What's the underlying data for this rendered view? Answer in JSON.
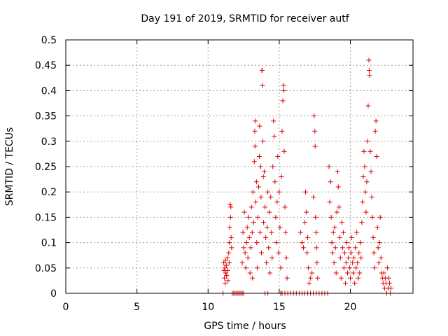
{
  "chart_data": {
    "type": "scatter",
    "title": "Day 191 of 2019, SRMTID for receiver autf",
    "xlabel": "GPS time / hours",
    "ylabel": "SRMTID / TECUs",
    "xlim": [
      0,
      24.4
    ],
    "ylim": [
      0,
      0.5
    ],
    "xticks": [
      0,
      5,
      10,
      15,
      20
    ],
    "xtick_labels": [
      "0",
      "5",
      "10",
      "15",
      "20"
    ],
    "yticks": [
      0,
      0.05,
      0.1,
      0.15,
      0.2,
      0.25,
      0.3,
      0.35,
      0.4,
      0.45,
      0.5
    ],
    "ytick_labels": [
      "0",
      "0.05",
      "0.1",
      "0.15",
      "0.2",
      "0.25",
      "0.3",
      "0.35",
      "0.4",
      "0.45",
      "0.5"
    ],
    "grid": true,
    "marker": "+",
    "color": "#dd0000",
    "series": [
      {
        "name": "SRMTID",
        "points": [
          [
            11.05,
            0.0
          ],
          [
            11.1,
            0.06
          ],
          [
            11.12,
            0.045
          ],
          [
            11.15,
            0.03
          ],
          [
            11.18,
            0.05
          ],
          [
            11.2,
            0.02
          ],
          [
            11.22,
            0.065
          ],
          [
            11.25,
            0.04
          ],
          [
            11.28,
            0.055
          ],
          [
            11.3,
            0.035
          ],
          [
            11.35,
            0.07
          ],
          [
            11.38,
            0.045
          ],
          [
            11.4,
            0.025
          ],
          [
            11.45,
            0.08
          ],
          [
            11.48,
            0.06
          ],
          [
            11.5,
            0.1
          ],
          [
            11.52,
            0.13
          ],
          [
            11.55,
            0.175
          ],
          [
            11.58,
            0.15
          ],
          [
            11.6,
            0.17
          ],
          [
            11.62,
            0.11
          ],
          [
            11.65,
            0.09
          ],
          [
            11.7,
            0.0
          ],
          [
            11.8,
            0.0
          ],
          [
            11.9,
            0.0
          ],
          [
            12.0,
            0.0
          ],
          [
            12.1,
            0.0
          ],
          [
            12.2,
            0.0
          ],
          [
            12.3,
            0.0
          ],
          [
            12.4,
            0.0
          ],
          [
            12.5,
            0.0
          ],
          [
            12.4,
            0.06
          ],
          [
            12.45,
            0.12
          ],
          [
            12.5,
            0.09
          ],
          [
            12.55,
            0.16
          ],
          [
            12.6,
            0.08
          ],
          [
            12.65,
            0.05
          ],
          [
            12.7,
            0.1
          ],
          [
            12.75,
            0.13
          ],
          [
            12.8,
            0.07
          ],
          [
            12.85,
            0.15
          ],
          [
            12.9,
            0.11
          ],
          [
            12.95,
            0.04
          ],
          [
            13.0,
            0.09
          ],
          [
            13.05,
            0.17
          ],
          [
            13.1,
            0.12
          ],
          [
            13.12,
            0.03
          ],
          [
            13.15,
            0.2
          ],
          [
            13.2,
            0.14
          ],
          [
            13.25,
            0.26
          ],
          [
            13.28,
            0.32
          ],
          [
            13.3,
            0.29
          ],
          [
            13.32,
            0.34
          ],
          [
            13.35,
            0.18
          ],
          [
            13.4,
            0.22
          ],
          [
            13.42,
            0.1
          ],
          [
            13.45,
            0.05
          ],
          [
            13.5,
            0.15
          ],
          [
            13.55,
            0.21
          ],
          [
            13.6,
            0.27
          ],
          [
            13.62,
            0.33
          ],
          [
            13.65,
            0.12
          ],
          [
            13.7,
            0.25
          ],
          [
            13.72,
            0.19
          ],
          [
            13.75,
            0.08
          ],
          [
            13.78,
            0.44
          ],
          [
            13.8,
            0.44
          ],
          [
            13.82,
            0.41
          ],
          [
            13.85,
            0.3
          ],
          [
            13.88,
            0.23
          ],
          [
            13.9,
            0.14
          ],
          [
            13.95,
            0.24
          ],
          [
            14.0,
            0.17
          ],
          [
            14.05,
            0.11
          ],
          [
            14.1,
            0.06
          ],
          [
            14.15,
            0.13
          ],
          [
            14.2,
            0.2
          ],
          [
            14.25,
            0.09
          ],
          [
            14.3,
            0.16
          ],
          [
            14.35,
            0.04
          ],
          [
            14.4,
            0.19
          ],
          [
            14.45,
            0.12
          ],
          [
            14.5,
            0.07
          ],
          [
            14.55,
            0.25
          ],
          [
            14.6,
            0.34
          ],
          [
            14.65,
            0.31
          ],
          [
            14.7,
            0.22
          ],
          [
            14.75,
            0.15
          ],
          [
            14.8,
            0.1
          ],
          [
            14.85,
            0.18
          ],
          [
            14.9,
            0.27
          ],
          [
            14.95,
            0.08
          ],
          [
            15.0,
            0.2
          ],
          [
            15.05,
            0.13
          ],
          [
            15.1,
            0.05
          ],
          [
            15.15,
            0.23
          ],
          [
            15.2,
            0.32
          ],
          [
            15.25,
            0.38
          ],
          [
            15.3,
            0.41
          ],
          [
            15.32,
            0.4
          ],
          [
            15.35,
            0.28
          ],
          [
            15.4,
            0.17
          ],
          [
            15.45,
            0.12
          ],
          [
            15.5,
            0.07
          ],
          [
            15.55,
            0.03
          ],
          [
            14.0,
            0.0
          ],
          [
            14.2,
            0.0
          ],
          [
            15.1,
            0.0
          ],
          [
            15.2,
            0.0
          ],
          [
            15.4,
            0.0
          ],
          [
            15.6,
            0.0
          ],
          [
            15.8,
            0.0
          ],
          [
            16.0,
            0.0
          ],
          [
            16.2,
            0.0
          ],
          [
            16.4,
            0.0
          ],
          [
            16.6,
            0.0
          ],
          [
            16.8,
            0.0
          ],
          [
            17.0,
            0.0
          ],
          [
            17.2,
            0.0
          ],
          [
            17.4,
            0.0
          ],
          [
            17.6,
            0.0
          ],
          [
            17.8,
            0.0
          ],
          [
            18.0,
            0.0
          ],
          [
            18.2,
            0.0
          ],
          [
            18.4,
            0.0
          ],
          [
            16.5,
            0.12
          ],
          [
            16.6,
            0.1
          ],
          [
            16.7,
            0.09
          ],
          [
            16.8,
            0.14
          ],
          [
            16.85,
            0.2
          ],
          [
            16.9,
            0.16
          ],
          [
            16.95,
            0.08
          ],
          [
            17.0,
            0.11
          ],
          [
            17.05,
            0.05
          ],
          [
            17.1,
            0.02
          ],
          [
            17.2,
            0.03
          ],
          [
            17.3,
            0.04
          ],
          [
            17.4,
            0.19
          ],
          [
            17.45,
            0.35
          ],
          [
            17.5,
            0.32
          ],
          [
            17.52,
            0.29
          ],
          [
            17.55,
            0.15
          ],
          [
            17.6,
            0.12
          ],
          [
            17.62,
            0.09
          ],
          [
            17.65,
            0.06
          ],
          [
            17.7,
            0.03
          ],
          [
            18.5,
            0.25
          ],
          [
            18.55,
            0.18
          ],
          [
            18.6,
            0.22
          ],
          [
            18.65,
            0.15
          ],
          [
            18.7,
            0.1
          ],
          [
            18.75,
            0.08
          ],
          [
            18.8,
            0.12
          ],
          [
            18.85,
            0.06
          ],
          [
            18.9,
            0.13
          ],
          [
            18.95,
            0.09
          ],
          [
            19.0,
            0.04
          ],
          [
            19.05,
            0.16
          ],
          [
            19.1,
            0.24
          ],
          [
            19.15,
            0.21
          ],
          [
            19.2,
            0.17
          ],
          [
            19.25,
            0.11
          ],
          [
            19.3,
            0.07
          ],
          [
            19.35,
            0.03
          ],
          [
            19.4,
            0.14
          ],
          [
            19.45,
            0.09
          ],
          [
            19.5,
            0.12
          ],
          [
            19.55,
            0.05
          ],
          [
            19.6,
            0.08
          ],
          [
            19.65,
            0.02
          ],
          [
            19.7,
            0.06
          ],
          [
            19.75,
            0.1
          ],
          [
            19.8,
            0.04
          ],
          [
            19.85,
            0.07
          ],
          [
            19.9,
            0.09
          ],
          [
            19.95,
            0.05
          ],
          [
            20.0,
            0.03
          ],
          [
            20.05,
            0.08
          ],
          [
            20.1,
            0.11
          ],
          [
            20.15,
            0.06
          ],
          [
            20.2,
            0.04
          ],
          [
            20.25,
            0.07
          ],
          [
            20.3,
            0.02
          ],
          [
            20.35,
            0.09
          ],
          [
            20.4,
            0.05
          ],
          [
            20.45,
            0.12
          ],
          [
            20.5,
            0.06
          ],
          [
            20.55,
            0.03
          ],
          [
            20.6,
            0.08
          ],
          [
            20.65,
            0.04
          ],
          [
            20.7,
            0.1
          ],
          [
            20.75,
            0.07
          ],
          [
            20.8,
            0.14
          ],
          [
            20.85,
            0.18
          ],
          [
            20.9,
            0.23
          ],
          [
            20.95,
            0.28
          ],
          [
            21.0,
            0.25
          ],
          [
            21.05,
            0.2
          ],
          [
            21.1,
            0.16
          ],
          [
            21.15,
            0.22
          ],
          [
            21.2,
            0.3
          ],
          [
            21.25,
            0.37
          ],
          [
            21.3,
            0.46
          ],
          [
            21.32,
            0.44
          ],
          [
            21.35,
            0.43
          ],
          [
            21.4,
            0.28
          ],
          [
            21.45,
            0.24
          ],
          [
            21.5,
            0.19
          ],
          [
            21.55,
            0.15
          ],
          [
            21.6,
            0.11
          ],
          [
            21.65,
            0.08
          ],
          [
            21.7,
            0.05
          ],
          [
            21.75,
            0.32
          ],
          [
            21.8,
            0.34
          ],
          [
            21.85,
            0.27
          ],
          [
            21.9,
            0.13
          ],
          [
            21.95,
            0.09
          ],
          [
            22.0,
            0.06
          ],
          [
            22.05,
            0.1
          ],
          [
            22.1,
            0.15
          ],
          [
            22.15,
            0.07
          ],
          [
            22.2,
            0.04
          ],
          [
            22.25,
            0.03
          ],
          [
            22.3,
            0.02
          ],
          [
            22.35,
            0.04
          ],
          [
            22.4,
            0.01
          ],
          [
            22.45,
            0.03
          ],
          [
            22.5,
            0.02
          ],
          [
            22.55,
            0.0
          ],
          [
            22.6,
            0.05
          ],
          [
            22.65,
            0.01
          ],
          [
            22.7,
            0.03
          ],
          [
            22.75,
            0.02
          ],
          [
            22.8,
            0.0
          ],
          [
            22.85,
            0.01
          ]
        ]
      }
    ]
  }
}
